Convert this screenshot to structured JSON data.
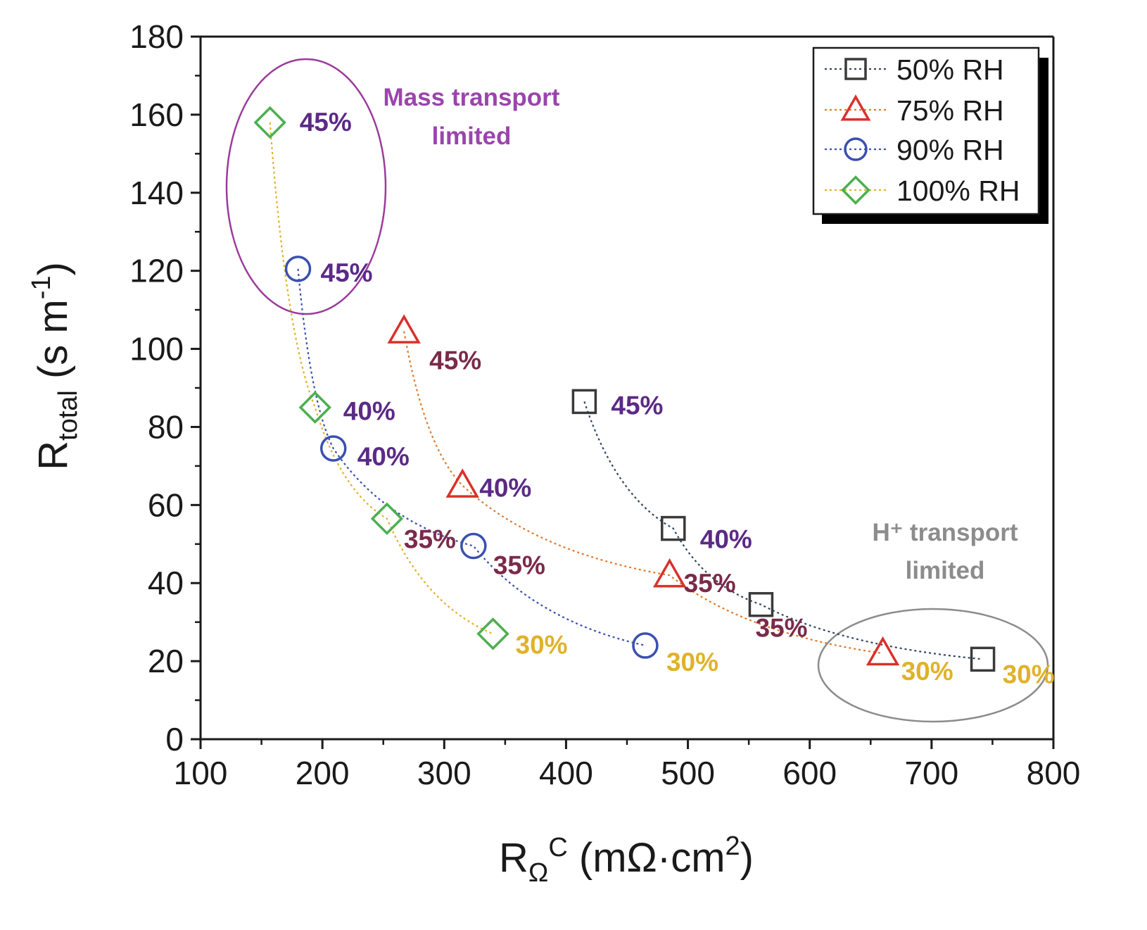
{
  "chart_data": {
    "type": "scatter",
    "xlabel": "RΩC (mΩ·cm2)",
    "xlabel_parts": {
      "main": "R",
      "sub": "Ω",
      "sup": "C",
      "unit": "(mΩ·cm",
      "unit_sup": "2",
      "unit_end": ")"
    },
    "ylabel": "Rtotal (s m-1)",
    "ylabel_parts": {
      "main": "R",
      "sub": "total",
      "unit": "(s m",
      "unit_sup": "-1",
      "unit_end": ")"
    },
    "xlim": [
      100,
      800
    ],
    "ylim": [
      0,
      180
    ],
    "xticks": [
      100,
      200,
      300,
      400,
      500,
      600,
      700,
      800
    ],
    "yticks": [
      0,
      20,
      40,
      60,
      80,
      100,
      120,
      140,
      160,
      180
    ],
    "grid": false,
    "legend_position": "top-right",
    "series": [
      {
        "name": "50% RH",
        "marker": "square",
        "color": "#3a3a3a",
        "line_color": "#33475f",
        "points": [
          {
            "x": 415,
            "y": 86.5,
            "label": "45%",
            "label_color": "#5b2a86"
          },
          {
            "x": 488,
            "y": 54,
            "label": "40%",
            "label_color": "#5b2a86"
          },
          {
            "x": 560,
            "y": 34.5,
            "label": "35%",
            "label_color": "#7a2a4a"
          },
          {
            "x": 742,
            "y": 20.5,
            "label": "30%",
            "label_color": "#e0b22a"
          }
        ]
      },
      {
        "name": "75% RH",
        "marker": "triangle",
        "color": "#d9312b",
        "line_color": "#e07a2a",
        "points": [
          {
            "x": 267,
            "y": 104.5,
            "label": "45%",
            "label_color": "#7a2a4a"
          },
          {
            "x": 315,
            "y": 65,
            "label": "40%",
            "label_color": "#5b2a86"
          },
          {
            "x": 485,
            "y": 42,
            "label": "35%",
            "label_color": "#7a2a4a"
          },
          {
            "x": 660,
            "y": 22,
            "label": "30%",
            "label_color": "#e0b22a"
          }
        ]
      },
      {
        "name": "90% RH",
        "marker": "circle",
        "color": "#3a4fb0",
        "line_color": "#3a4fb0",
        "points": [
          {
            "x": 180,
            "y": 120.5,
            "label": "45%",
            "label_color": "#5b2a86"
          },
          {
            "x": 209,
            "y": 74.5,
            "label": "40%",
            "label_color": "#5b2a86"
          },
          {
            "x": 324,
            "y": 49.5,
            "label": "35%",
            "label_color": "#7a2a4a"
          },
          {
            "x": 465,
            "y": 24,
            "label": "30%",
            "label_color": "#e0b22a"
          }
        ]
      },
      {
        "name": "100% RH",
        "marker": "diamond",
        "color": "#4caf50",
        "line_color": "#e0b22a",
        "points": [
          {
            "x": 157,
            "y": 158,
            "label": "45%",
            "label_color": "#5b2a86"
          },
          {
            "x": 194,
            "y": 85,
            "label": "40%",
            "label_color": "#5b2a86"
          },
          {
            "x": 253,
            "y": 56.5,
            "label": "35%",
            "label_color": "#7a2a4a"
          },
          {
            "x": 340,
            "y": 27,
            "label": "30%",
            "label_color": "#e0b22a"
          }
        ]
      }
    ],
    "annotations": [
      {
        "lines": [
          "Mass transport",
          "limited"
        ],
        "color": "#9b44ad",
        "ellipse_color": "#9b3a9b"
      },
      {
        "lines": [
          "H⁺ transport",
          "limited"
        ],
        "color": "#8c8c8c",
        "ellipse_color": "#8c8c8c"
      }
    ]
  }
}
